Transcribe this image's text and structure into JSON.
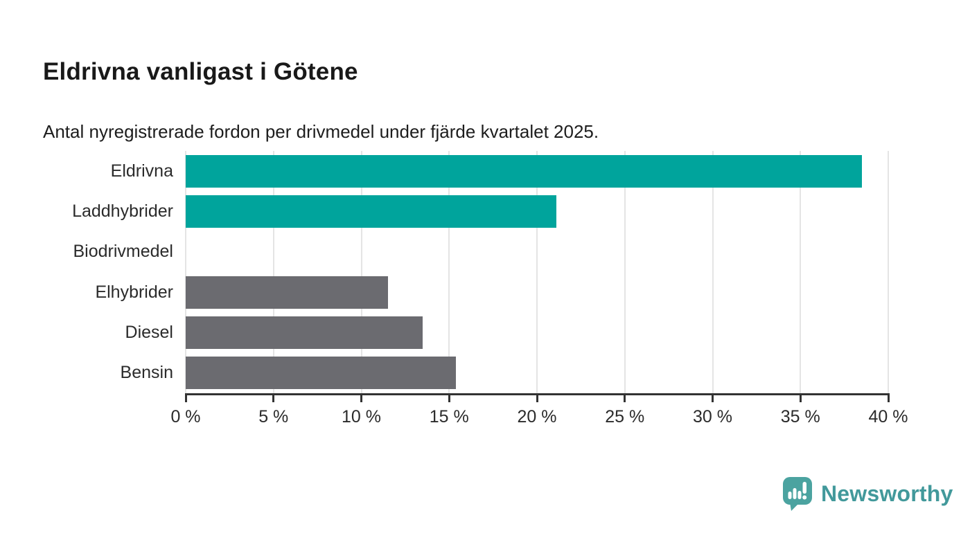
{
  "chart_data": {
    "type": "bar",
    "orientation": "horizontal",
    "title": "Eldrivna vanligast i Götene",
    "subtitle": "Antal nyregistrerade fordon per drivmedel under fjärde kvartalet 2025.",
    "categories": [
      "Eldrivna",
      "Laddhybrider",
      "Biodrivmedel",
      "Elhybrider",
      "Diesel",
      "Bensin"
    ],
    "values": [
      38.5,
      21.1,
      0,
      11.5,
      13.5,
      15.4
    ],
    "unit": "%",
    "bar_colors": [
      "#00a49c",
      "#00a49c",
      "#6b6b70",
      "#6b6b70",
      "#6b6b70",
      "#6b6b70"
    ],
    "xlabel": "",
    "ylabel": "",
    "xlim": [
      0,
      40
    ],
    "x_ticks": [
      "0 %",
      "5 %",
      "10 %",
      "15 %",
      "20 %",
      "25 %",
      "30 %",
      "35 %",
      "40 %"
    ],
    "grid": "vertical-only",
    "legend": "none"
  },
  "colors": {
    "bar_teal": "#00a49c",
    "bar_gray": "#6b6b70",
    "gridline": "#e4e4e4",
    "axis": "#333333",
    "text_dark": "#191919",
    "brand_teal": "#42999b",
    "brand_icon_teal": "#4ba3a0"
  },
  "branding": {
    "logo_text": "Newsworthy"
  }
}
